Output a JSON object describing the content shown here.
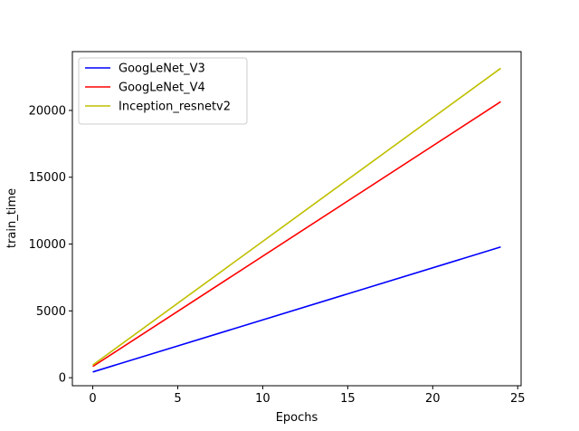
{
  "chart_data": {
    "type": "line",
    "title": "",
    "xlabel": "Epochs",
    "ylabel": "train_time",
    "xlim": [
      -1.2,
      25.2
    ],
    "ylim": [
      -600,
      24400
    ],
    "xticks": [
      0,
      5,
      10,
      15,
      20,
      25
    ],
    "yticks": [
      0,
      5000,
      10000,
      15000,
      20000
    ],
    "grid": false,
    "legend_position": "upper-left",
    "series": [
      {
        "name": "GoogLeNet_V3",
        "color": "#0000ff",
        "x": [
          0,
          24
        ],
        "y": [
          430,
          9780
        ]
      },
      {
        "name": "GoogLeNet_V4",
        "color": "#ff0000",
        "x": [
          0,
          24
        ],
        "y": [
          840,
          20650
        ]
      },
      {
        "name": "Inception_resnetv2",
        "color": "#bfbf00",
        "x": [
          0,
          24
        ],
        "y": [
          950,
          23150
        ]
      }
    ]
  }
}
